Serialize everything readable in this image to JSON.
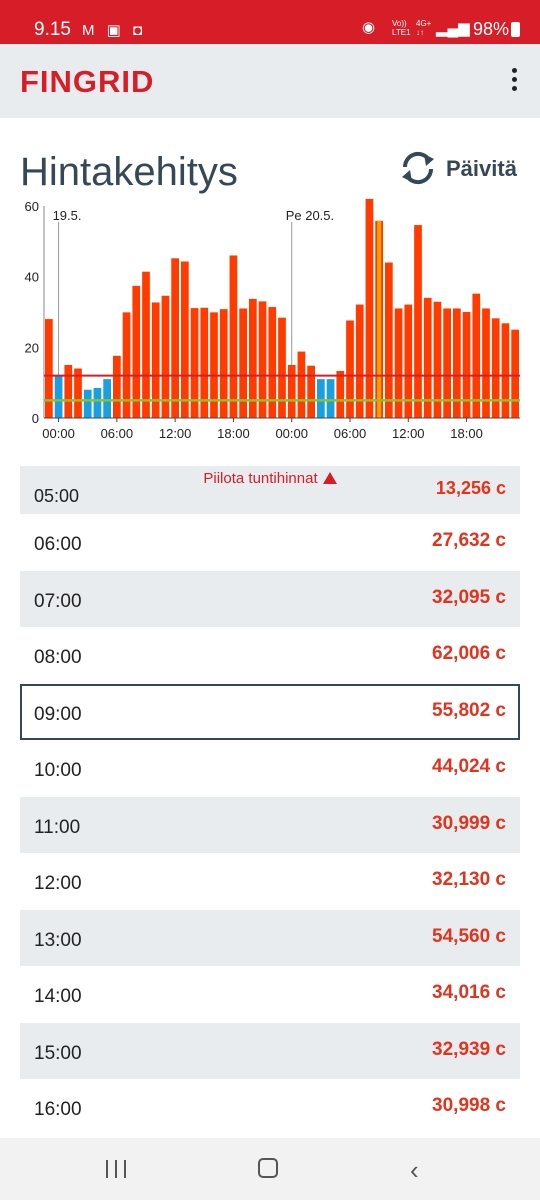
{
  "status_bar": {
    "time": "9.15",
    "left_icons": "M ▣ ◘",
    "network_icon": "◉",
    "volte": "Vo))\nLTE1",
    "net_type": "4G+\n↓↑",
    "signal_icon": "▂▄▆",
    "battery": "98%"
  },
  "app": {
    "logo": "FINGRID",
    "title": "Hintakehitys",
    "refresh_label": "Päivitä",
    "toggle_label": "Piilota tuntihinnat"
  },
  "colors": {
    "brand": "#d71e28",
    "bar_high": "#ff3b00",
    "bar_low": "#1a9fe0",
    "avg_line": "#d71e28",
    "ref_line": "#8fbf2a",
    "current_hour": "#ffa000",
    "text_dark": "#344856"
  },
  "chart_data": {
    "type": "bar",
    "ylim": [
      0,
      60
    ],
    "y_ticks": [
      "0",
      "20",
      "40",
      "60"
    ],
    "x_ticks": [
      "00:00",
      "06:00",
      "12:00",
      "18:00",
      "00:00",
      "06:00",
      "12:00",
      "18:00"
    ],
    "day_labels": [
      {
        "label": "19.5.",
        "hour": 0
      },
      {
        "label": "Pe 20.5.",
        "hour": 24
      }
    ],
    "start_hour": 23,
    "values": [
      28,
      12,
      15,
      14,
      8,
      8.5,
      11,
      17.6,
      29.9,
      37.4,
      41.4,
      32.7,
      34.6,
      45.2,
      44.3,
      31.1,
      31.2,
      29.9,
      30.8,
      46,
      31,
      33.7,
      33,
      31.4,
      28.4,
      15,
      18.8,
      14.8,
      11,
      11,
      13.3,
      27.6,
      32.1,
      62,
      55.8,
      44,
      31,
      32.1,
      54.6,
      34,
      32.9,
      31,
      31,
      30,
      35.2,
      31,
      28.2,
      26.8,
      25
    ],
    "low_bar_indices": [
      1,
      4,
      5,
      6,
      28,
      29
    ],
    "current_index": 34,
    "average": 12,
    "reference": 5
  },
  "price_list": {
    "clipped_row": {
      "time": "05:00",
      "price": "13,256 c"
    },
    "rows": [
      {
        "time": "06:00",
        "price": "27,632 c"
      },
      {
        "time": "07:00",
        "price": "32,095 c"
      },
      {
        "time": "08:00",
        "price": "62,006 c"
      },
      {
        "time": "09:00",
        "price": "55,802 c"
      },
      {
        "time": "10:00",
        "price": "44,024 c"
      },
      {
        "time": "11:00",
        "price": "30,999 c"
      },
      {
        "time": "12:00",
        "price": "32,130 c"
      },
      {
        "time": "13:00",
        "price": "54,560 c"
      },
      {
        "time": "14:00",
        "price": "34,016 c"
      },
      {
        "time": "15:00",
        "price": "32,939 c"
      },
      {
        "time": "16:00",
        "price": "30,998 c"
      }
    ],
    "selected_time": "09:00"
  }
}
